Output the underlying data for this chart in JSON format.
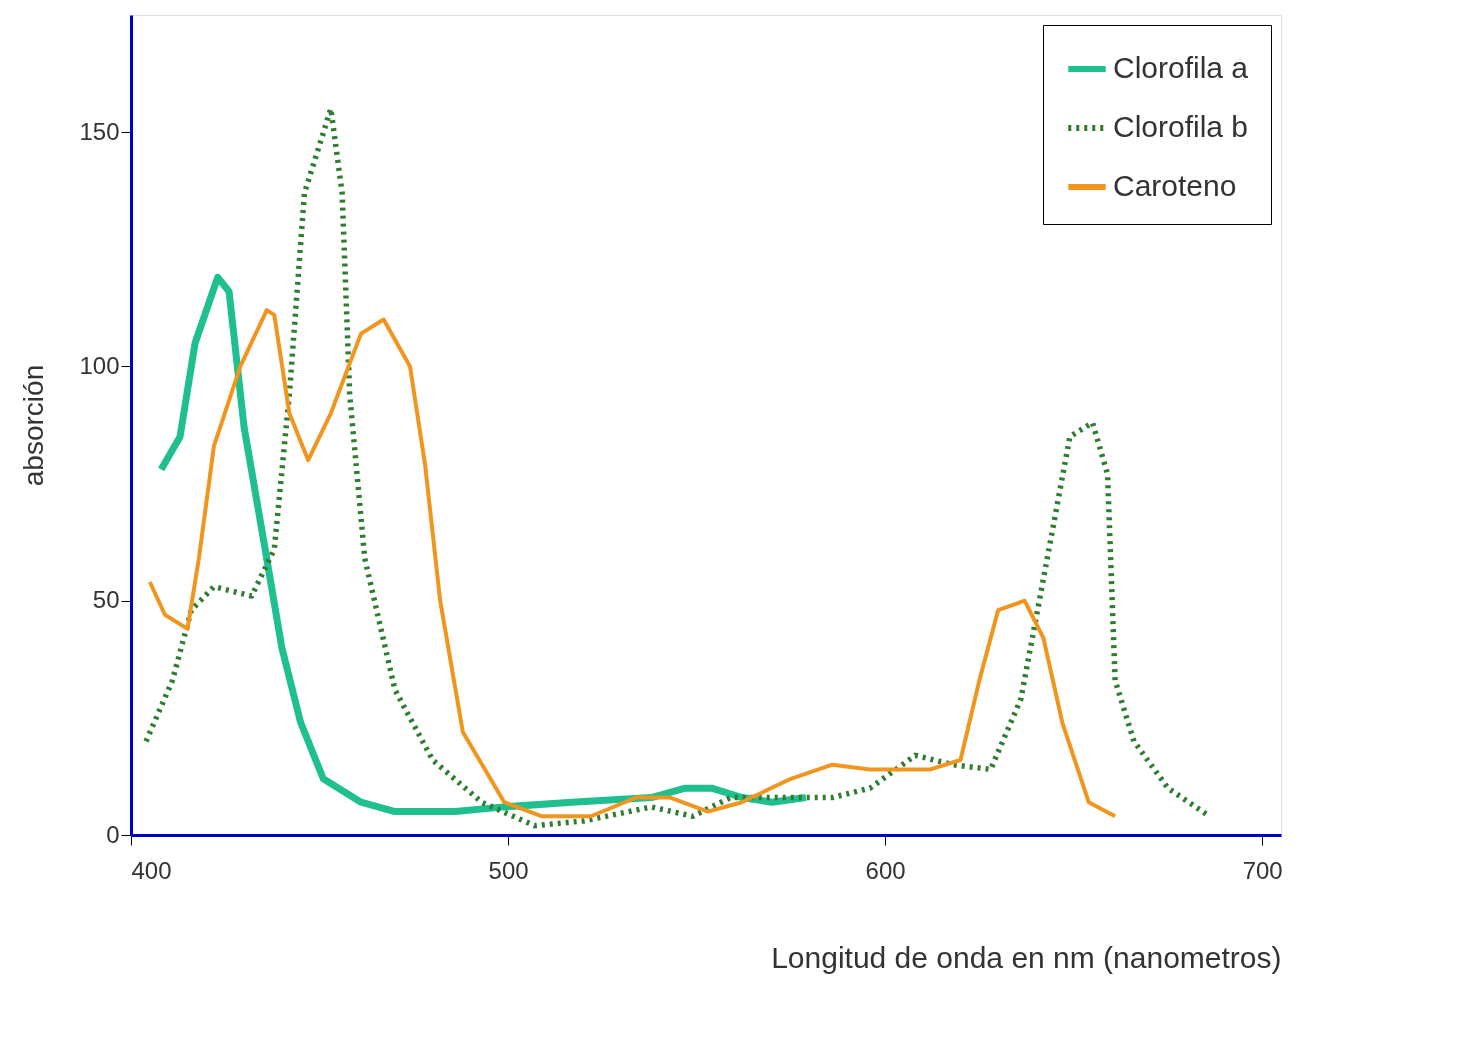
{
  "chart_data": {
    "type": "line",
    "ylabel": "absorción",
    "xlabel": "Longitud de onda en  nm (nanometros)",
    "xlim": [
      400,
      705
    ],
    "ylim": [
      0,
      175
    ],
    "xticks": [
      400,
      500,
      600,
      700
    ],
    "yticks": [
      0,
      50,
      100,
      150
    ],
    "grid": false,
    "legend": "top right",
    "marker": "none",
    "series": [
      {
        "name": "Clorofila a",
        "color": "#1fbf8f",
        "line_style": "solid",
        "x": [
          408,
          413,
          417,
          423,
          426,
          430,
          436,
          440,
          445,
          451,
          461,
          470,
          486,
          499,
          517,
          538,
          547,
          554,
          562,
          570,
          579
        ],
        "values": [
          78,
          85,
          105,
          119,
          116,
          87,
          59,
          40,
          24,
          12,
          7,
          5,
          5,
          6,
          7,
          8,
          10,
          10,
          8,
          7,
          8
        ]
      },
      {
        "name": "Clorofila b",
        "color": "#2e7d32",
        "line_style": "dotted",
        "x": [
          404,
          411,
          416,
          422,
          432,
          438,
          442,
          446,
          453,
          456,
          458,
          462,
          470,
          480,
          493,
          507,
          520,
          538,
          549,
          559,
          572,
          586,
          596,
          608,
          618,
          628,
          636,
          643,
          649,
          655,
          659,
          661,
          666,
          675,
          686
        ],
        "values": [
          20,
          33,
          48,
          53,
          51,
          61,
          94,
          137,
          155,
          137,
          94,
          59,
          31,
          16,
          7,
          2,
          3,
          6,
          4,
          8,
          8,
          8,
          10,
          17,
          15,
          14,
          29,
          59,
          85,
          88,
          77,
          33,
          20,
          10,
          4
        ]
      },
      {
        "name": "Caroteno",
        "color": "#f0961e",
        "line_style": "solid",
        "x": [
          405,
          409,
          415,
          418,
          422,
          429,
          436,
          438,
          442,
          447,
          453,
          461,
          467,
          474,
          478,
          482,
          488,
          499,
          509,
          522,
          534,
          543,
          553,
          562,
          575,
          586,
          596,
          612,
          620,
          625,
          630,
          637,
          642,
          647,
          654,
          661
        ],
        "values": [
          54,
          47,
          44,
          59,
          83,
          100,
          112,
          111,
          90,
          80,
          90,
          107,
          110,
          100,
          79,
          50,
          22,
          7,
          4,
          4,
          8,
          8,
          5,
          7,
          12,
          15,
          14,
          14,
          16,
          33,
          48,
          50,
          42,
          24,
          7,
          4
        ]
      }
    ]
  }
}
